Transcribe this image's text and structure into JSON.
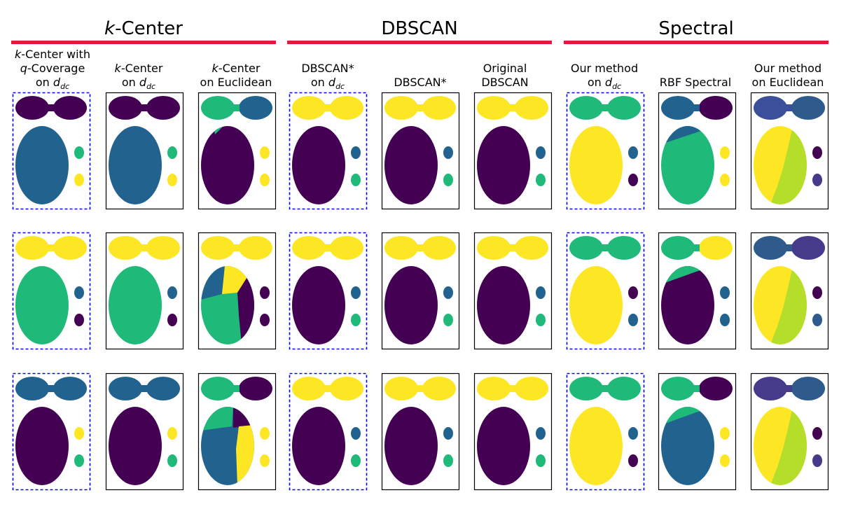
{
  "groups": [
    {
      "title_prefix": "k",
      "title_suffix": "-Center"
    },
    {
      "title_prefix": "",
      "title_suffix": "DBSCAN"
    },
    {
      "title_prefix": "",
      "title_suffix": "Spectral"
    }
  ],
  "columns": [
    {
      "lines": [
        "k-Center with",
        "q-Coverage",
        "on d_dc"
      ],
      "highlight": true
    },
    {
      "lines": [
        "k-Center",
        "on d_dc"
      ],
      "highlight": false
    },
    {
      "lines": [
        "k-Center",
        "on Euclidean"
      ],
      "highlight": false
    },
    {
      "lines": [
        "DBSCAN*",
        "on d_dc"
      ],
      "highlight": true
    },
    {
      "lines": [
        "DBSCAN*"
      ],
      "highlight": false
    },
    {
      "lines": [
        "Original",
        "DBSCAN"
      ],
      "highlight": false
    },
    {
      "lines": [
        "Our method",
        "on d_dc"
      ],
      "highlight": true
    },
    {
      "lines": [
        "RBF Spectral"
      ],
      "highlight": false
    },
    {
      "lines": [
        "Our method",
        "on Euclidean"
      ],
      "highlight": false
    }
  ],
  "colors": {
    "purple": "#440154",
    "blue": "#21638e",
    "green": "#1fba7a",
    "yellow": "#fde725",
    "indigo": "#3b4f9a",
    "lime": "#b5de2b",
    "slate": "#2e5a8c",
    "violet": "#463a8a",
    "accent_bar": "#e8153c",
    "highlight_border": "#0000ee"
  },
  "panels": [
    [
      {
        "top": "purple",
        "big": "blue",
        "d1": "green",
        "d2": "yellow"
      },
      {
        "top": "purple",
        "big": "blue",
        "d1": "green",
        "d2": "yellow"
      },
      {
        "top": "green",
        "top_right": "blue",
        "big": "purple",
        "d1": "yellow",
        "d2": "yellow",
        "style": "kc1"
      },
      {
        "top": "yellow",
        "big": "purple",
        "d1": "blue",
        "d2": "green"
      },
      {
        "top": "yellow",
        "big": "purple",
        "d1": "blue",
        "d2": "green"
      },
      {
        "top": "yellow",
        "big": "purple",
        "d1": "blue",
        "d2": "green"
      },
      {
        "top": "green",
        "big": "yellow",
        "d1": "blue",
        "d2": "purple"
      },
      {
        "top": "blue",
        "top_right": "purple",
        "big": "green",
        "d1": "yellow",
        "d2": "yellow",
        "style": "cap_blue"
      },
      {
        "top": "indigo",
        "top_right": "slate",
        "big": "yellow",
        "d1": "purple",
        "d2": "violet",
        "style": "split_lime"
      }
    ],
    [
      {
        "top": "yellow",
        "big": "green",
        "d1": "blue",
        "d2": "purple"
      },
      {
        "top": "yellow",
        "big": "green",
        "d1": "blue",
        "d2": "purple"
      },
      {
        "top": "yellow",
        "big": "green",
        "d1": "purple",
        "d2": "purple",
        "style": "kc2"
      },
      {
        "top": "yellow",
        "big": "purple",
        "d1": "blue",
        "d2": "green"
      },
      {
        "top": "yellow",
        "big": "purple",
        "d1": "blue",
        "d2": "green"
      },
      {
        "top": "yellow",
        "big": "purple",
        "d1": "blue",
        "d2": "green"
      },
      {
        "top": "green",
        "big": "yellow",
        "d1": "purple",
        "d2": "blue"
      },
      {
        "top": "green",
        "top_right": "yellow",
        "big": "purple",
        "d1": "blue",
        "d2": "blue",
        "style": "cap_green"
      },
      {
        "top": "slate",
        "top_right": "violet",
        "big": "yellow",
        "d1": "purple",
        "d2": "slate",
        "style": "split_lime"
      }
    ],
    [
      {
        "top": "blue",
        "big": "purple",
        "d1": "yellow",
        "d2": "green"
      },
      {
        "top": "blue",
        "big": "purple",
        "d1": "yellow",
        "d2": "green"
      },
      {
        "top": "green",
        "top_right": "purple",
        "big": "blue",
        "d1": "yellow",
        "d2": "yellow",
        "style": "kc3"
      },
      {
        "top": "yellow",
        "big": "purple",
        "d1": "blue",
        "d2": "green"
      },
      {
        "top": "yellow",
        "big": "purple",
        "d1": "blue",
        "d2": "green"
      },
      {
        "top": "yellow",
        "big": "purple",
        "d1": "blue",
        "d2": "green"
      },
      {
        "top": "green",
        "big": "yellow",
        "d1": "blue",
        "d2": "purple"
      },
      {
        "top": "green",
        "top_right": "purple",
        "big": "blue",
        "d1": "yellow",
        "d2": "yellow",
        "style": "cap_green"
      },
      {
        "top": "violet",
        "top_right": "slate",
        "big": "yellow",
        "d1": "purple",
        "d2": "violet",
        "style": "split_lime"
      }
    ]
  ]
}
